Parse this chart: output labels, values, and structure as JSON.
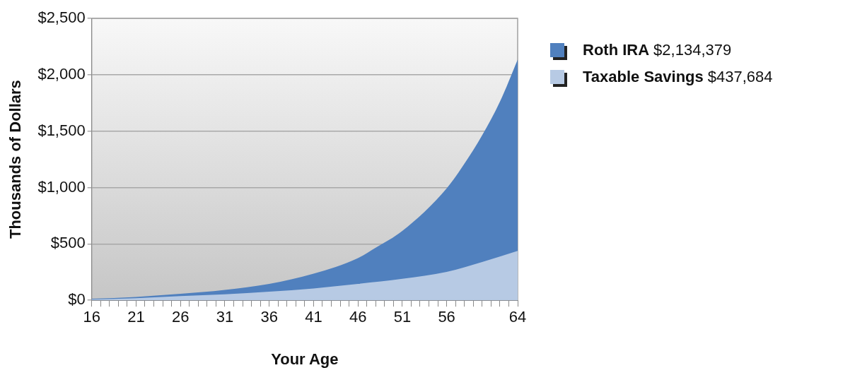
{
  "chart_data": {
    "type": "area",
    "xlabel": "Your Age",
    "ylabel": "Thousands of Dollars",
    "xlim": [
      16,
      64
    ],
    "xticks": [
      16,
      {
        "value": 17,
        "label": null
      },
      {
        "value": 18,
        "label": null
      },
      {
        "value": 19,
        "label": null
      },
      {
        "value": 20,
        "label": null
      },
      21,
      {
        "value": 22,
        "label": null
      },
      {
        "value": 23,
        "label": null
      },
      {
        "value": 24,
        "label": null
      },
      {
        "value": 25,
        "label": null
      },
      26,
      {
        "value": 27,
        "label": null
      },
      {
        "value": 28,
        "label": null
      },
      {
        "value": 29,
        "label": null
      },
      {
        "value": 30,
        "label": null
      },
      31,
      {
        "value": 32,
        "label": null
      },
      {
        "value": 33,
        "label": null
      },
      {
        "value": 34,
        "label": null
      },
      {
        "value": 35,
        "label": null
      },
      36,
      {
        "value": 37,
        "label": null
      },
      {
        "value": 38,
        "label": null
      },
      {
        "value": 39,
        "label": null
      },
      {
        "value": 40,
        "label": null
      },
      41,
      {
        "value": 42,
        "label": null
      },
      {
        "value": 43,
        "label": null
      },
      {
        "value": 44,
        "label": null
      },
      {
        "value": 45,
        "label": null
      },
      46,
      {
        "value": 47,
        "label": null
      },
      {
        "value": 48,
        "label": null
      },
      {
        "value": 49,
        "label": null
      },
      {
        "value": 50,
        "label": null
      },
      51,
      {
        "value": 52,
        "label": null
      },
      {
        "value": 53,
        "label": null
      },
      {
        "value": 54,
        "label": null
      },
      {
        "value": 55,
        "label": null
      },
      56,
      {
        "value": 57,
        "label": null
      },
      {
        "value": 58,
        "label": null
      },
      {
        "value": 59,
        "label": null
      },
      {
        "value": 60,
        "label": null
      },
      {
        "value": 61,
        "label": null
      },
      {
        "value": 62,
        "label": null
      },
      {
        "value": 63,
        "label": null
      },
      64
    ],
    "ylim": [
      0,
      2500
    ],
    "yticks": [
      {
        "value": 0,
        "label": "$0"
      },
      {
        "value": 500,
        "label": "$500"
      },
      {
        "value": 1000,
        "label": "$1,000"
      },
      {
        "value": 1500,
        "label": "$1,500"
      },
      {
        "value": 2000,
        "label": "$2,000"
      },
      {
        "value": 2500,
        "label": "$2,500"
      }
    ],
    "grid": "y",
    "legend": "right",
    "series": [
      {
        "name": "Roth IRA $2,134,379",
        "color": "#5080be",
        "x": [
          16,
          21,
          26,
          31,
          36,
          41,
          46,
          48,
          51,
          56,
          58,
          60,
          62,
          64
        ],
        "values": [
          14,
          30,
          57,
          92,
          145,
          236,
          374,
          466,
          615,
          993,
          1211,
          1463,
          1761,
          2134.379
        ]
      },
      {
        "name": "Taxable Savings $437,684",
        "color": "#b7cae4",
        "x": [
          16,
          21,
          26,
          31,
          36,
          41,
          46,
          51,
          56,
          60,
          64
        ],
        "values": [
          7,
          18,
          37,
          53,
          76,
          105,
          145,
          190,
          252,
          339,
          437.684
        ]
      }
    ]
  }
}
